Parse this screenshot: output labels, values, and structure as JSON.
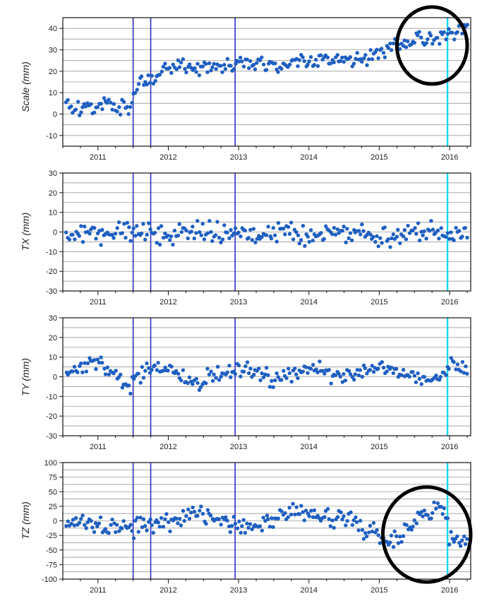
{
  "colors": {
    "points": "#1f5fc1",
    "grid": "#9a9a9a",
    "event_lines": "#2b2fc4",
    "highlight_line": "#18d8f0",
    "marker_circles": "#000000"
  },
  "chart_data": [
    {
      "type": "scatter",
      "ylabel": "Scale (mm)",
      "ylim": [
        -15,
        45
      ],
      "yticks": [
        -10,
        0,
        10,
        20,
        30,
        40
      ],
      "xlim": [
        2010.5,
        2016.3
      ],
      "xticks": [
        {
          "value": 2011.0,
          "label": "2011"
        },
        {
          "value": 2012.0,
          "label": "2012"
        },
        {
          "value": 2013.0,
          "label": "2013"
        },
        {
          "value": 2014.0,
          "label": "2014"
        },
        {
          "value": 2015.0,
          "label": "2015"
        },
        {
          "value": 2016.0,
          "label": "2016"
        }
      ],
      "grid": true,
      "event_lines": [
        2011.5,
        2011.75,
        2012.95
      ],
      "highlight_line": 2015.97,
      "highlight_ellipses": [
        {
          "x_range": [
            2015.25,
            2016.25
          ],
          "y_range": [
            14,
            50
          ]
        }
      ],
      "series": [
        {
          "trend": [
            [
              2010.5,
              4
            ],
            [
              2011.0,
              3
            ],
            [
              2011.15,
              5.5
            ],
            [
              2011.3,
              2
            ],
            [
              2011.45,
              2.5
            ],
            [
              2011.52,
              12
            ],
            [
              2011.8,
              17
            ],
            [
              2011.95,
              22
            ],
            [
              2012.2,
              22
            ],
            [
              2012.6,
              23
            ],
            [
              2013.0,
              23.5
            ],
            [
              2013.2,
              25
            ],
            [
              2013.5,
              23
            ],
            [
              2013.8,
              24
            ],
            [
              2014.2,
              24.5
            ],
            [
              2014.6,
              25
            ],
            [
              2015.0,
              28
            ],
            [
              2015.2,
              32
            ],
            [
              2015.5,
              34
            ],
            [
              2015.8,
              36
            ],
            [
              2016.0,
              37
            ],
            [
              2016.25,
              41
            ]
          ],
          "spread": 2.6,
          "count": 245,
          "seed": 101
        }
      ]
    },
    {
      "type": "scatter",
      "ylabel": "TX (mm)",
      "ylim": [
        -30,
        30
      ],
      "yticks": [
        -30,
        -20,
        -10,
        0,
        10,
        20,
        30
      ],
      "xlim": [
        2010.5,
        2016.3
      ],
      "xticks": [
        {
          "value": 2011.0,
          "label": "2011"
        },
        {
          "value": 2012.0,
          "label": "2012"
        },
        {
          "value": 2013.0,
          "label": "2013"
        },
        {
          "value": 2014.0,
          "label": "2014"
        },
        {
          "value": 2015.0,
          "label": "2015"
        },
        {
          "value": 2016.0,
          "label": "2016"
        }
      ],
      "grid": true,
      "event_lines": [
        2011.5,
        2011.75,
        2012.95
      ],
      "highlight_line": 2015.97,
      "highlight_ellipses": [],
      "series": [
        {
          "trend": [
            [
              2010.5,
              -1
            ],
            [
              2011.0,
              -2
            ],
            [
              2011.3,
              1
            ],
            [
              2011.6,
              -1
            ],
            [
              2012.0,
              -2
            ],
            [
              2012.3,
              2
            ],
            [
              2012.6,
              -1
            ],
            [
              2013.0,
              0
            ],
            [
              2013.3,
              -3
            ],
            [
              2013.6,
              1
            ],
            [
              2014.0,
              -2
            ],
            [
              2014.3,
              1
            ],
            [
              2014.7,
              -1
            ],
            [
              2015.0,
              -4
            ],
            [
              2015.3,
              -1
            ],
            [
              2015.6,
              1
            ],
            [
              2015.9,
              0
            ],
            [
              2016.25,
              -2
            ]
          ],
          "spread": 3.6,
          "count": 245,
          "seed": 202
        }
      ]
    },
    {
      "type": "scatter",
      "ylabel": "TY (mm)",
      "ylim": [
        -30,
        30
      ],
      "yticks": [
        -30,
        -20,
        -10,
        0,
        10,
        20,
        30
      ],
      "xlim": [
        2010.5,
        2016.3
      ],
      "xticks": [
        {
          "value": 2011.0,
          "label": "2011"
        },
        {
          "value": 2012.0,
          "label": "2012"
        },
        {
          "value": 2013.0,
          "label": "2013"
        },
        {
          "value": 2014.0,
          "label": "2014"
        },
        {
          "value": 2015.0,
          "label": "2015"
        },
        {
          "value": 2016.0,
          "label": "2016"
        }
      ],
      "grid": true,
      "event_lines": [
        2011.5,
        2011.75,
        2012.95
      ],
      "highlight_line": 2015.97,
      "highlight_ellipses": [],
      "series": [
        {
          "trend": [
            [
              2010.5,
              1
            ],
            [
              2010.8,
              4
            ],
            [
              2011.0,
              8
            ],
            [
              2011.2,
              2
            ],
            [
              2011.45,
              -6
            ],
            [
              2011.6,
              1
            ],
            [
              2011.85,
              6
            ],
            [
              2012.1,
              2
            ],
            [
              2012.4,
              -3
            ],
            [
              2012.7,
              1
            ],
            [
              2013.0,
              3
            ],
            [
              2013.3,
              2
            ],
            [
              2013.5,
              -2
            ],
            [
              2013.8,
              2
            ],
            [
              2014.1,
              5
            ],
            [
              2014.4,
              -1
            ],
            [
              2014.7,
              2
            ],
            [
              2015.0,
              5
            ],
            [
              2015.3,
              2
            ],
            [
              2015.6,
              -2
            ],
            [
              2015.9,
              0
            ],
            [
              2016.05,
              7
            ],
            [
              2016.25,
              4
            ]
          ],
          "spread": 2.8,
          "count": 245,
          "seed": 303
        }
      ]
    },
    {
      "type": "scatter",
      "ylabel": "TZ (mm)",
      "ylim": [
        -100,
        100
      ],
      "yticks": [
        -100,
        -75,
        -50,
        -25,
        0,
        25,
        50,
        75,
        100
      ],
      "xlim": [
        2010.5,
        2016.3
      ],
      "xticks": [
        {
          "value": 2011.0,
          "label": "2011"
        },
        {
          "value": 2012.0,
          "label": "2012"
        },
        {
          "value": 2013.0,
          "label": "2013"
        },
        {
          "value": 2014.0,
          "label": "2014"
        },
        {
          "value": 2015.0,
          "label": "2015"
        },
        {
          "value": 2016.0,
          "label": "2016"
        }
      ],
      "grid": true,
      "event_lines": [
        2011.5,
        2011.75,
        2012.95
      ],
      "highlight_line": 2015.97,
      "highlight_ellipses": [
        {
          "x_range": [
            2015.05,
            2016.3
          ],
          "y_range": [
            -105,
            58
          ]
        }
      ],
      "series": [
        {
          "trend": [
            [
              2010.5,
              -3
            ],
            [
              2011.0,
              -10
            ],
            [
              2011.5,
              -15
            ],
            [
              2011.8,
              -5
            ],
            [
              2012.2,
              5
            ],
            [
              2012.6,
              10
            ],
            [
              2013.0,
              -15
            ],
            [
              2013.4,
              0
            ],
            [
              2013.8,
              15
            ],
            [
              2014.2,
              10
            ],
            [
              2014.6,
              0
            ],
            [
              2014.9,
              -20
            ],
            [
              2015.1,
              -40
            ],
            [
              2015.3,
              -25
            ],
            [
              2015.55,
              10
            ],
            [
              2015.75,
              20
            ],
            [
              2015.95,
              15
            ],
            [
              2016.0,
              -35
            ],
            [
              2016.25,
              -40
            ]
          ],
          "spread": 12,
          "count": 245,
          "seed": 404
        }
      ]
    }
  ]
}
